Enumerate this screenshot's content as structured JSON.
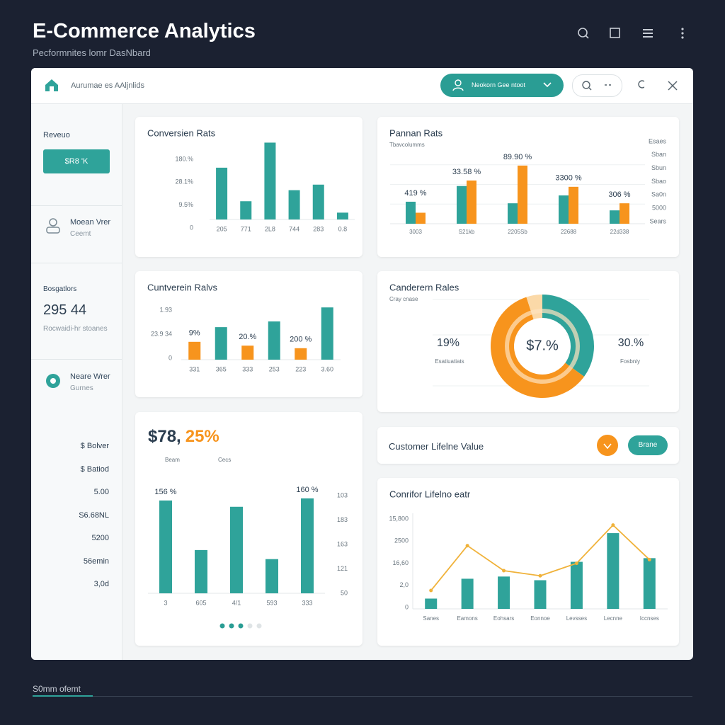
{
  "header": {
    "title": "E-Commerce Analytics",
    "subtitle": "Pecformnites lomr DasNbard"
  },
  "toolbar": {
    "breadcrumb": "Aurumae es AAljnlids",
    "dropdown": "Neokorn Gee ntoot"
  },
  "sidebar": {
    "revenue_label": "Reveuo",
    "revenue_button": "$R8 'K",
    "user1": [
      "Moean Vrer",
      "Ceemt"
    ],
    "stat_label": "Bosgatlors",
    "stat_value": "295 44",
    "stat_caption": "Rocwaidi-hr stoanes",
    "user2": [
      "Neare Wrer",
      "Gurnes"
    ],
    "list": [
      "$ Bolver",
      "$ Batiod",
      "5.00",
      "S6.68NL",
      "5200",
      "56emin",
      "3,0d"
    ]
  },
  "lifetime_row": {
    "title": "Customer Lifelne Value",
    "button": "Brane"
  },
  "footer": {
    "label": "S0mm ofemt"
  },
  "chart_data": [
    {
      "type": "bar",
      "title": "Conversien Rats",
      "categories": [
        "205",
        "771",
        "2L8",
        "744",
        "283",
        "0.8"
      ],
      "values": [
        159,
        56,
        236,
        90,
        107,
        21
      ],
      "color": "#2fa39a",
      "ylim": [
        0,
        250
      ],
      "y_labels": [
        "180.%",
        "28.1%",
        "9.5%",
        "0"
      ]
    },
    {
      "type": "grouped-bar",
      "title": "Pannan Rats",
      "subtitle": "Tbavcolumms",
      "categories": [
        "3003",
        "S21kb",
        "2205Sb",
        "22688",
        "22d338"
      ],
      "series": [
        {
          "color": "#2fa39a",
          "values": [
            28,
            48,
            26,
            36,
            17
          ]
        },
        {
          "color": "#f7941d",
          "values": [
            14,
            55,
            74,
            47,
            26
          ]
        }
      ],
      "annotations": [
        "419 %",
        "33.58 %",
        "89.90 %",
        "3300 %",
        "306 %"
      ],
      "y2_labels": [
        "Esaes",
        "Sban",
        "Sbun",
        "Sbao",
        "Sa0n",
        "5000",
        "Sears"
      ],
      "ylim": [
        0,
        100
      ]
    },
    {
      "type": "bar",
      "title": "Cuntverein Ralvs",
      "categories": [
        "331",
        "365",
        "333",
        "253",
        "223",
        "3.60"
      ],
      "values": [
        28,
        51,
        22,
        60,
        18,
        82
      ],
      "colors": [
        "#f7941d",
        "#2fa39a",
        "#f7941d",
        "#2fa39a",
        "#f7941d",
        "#2fa39a"
      ],
      "ylim": [
        0,
        100
      ],
      "y_labels": [
        "1.93",
        "23.9 34",
        "0"
      ],
      "annotations": [
        "9%",
        "20.%",
        "200 %"
      ]
    },
    {
      "type": "donut",
      "title": "Canderern Rales",
      "subtitle": "Cray cnase",
      "values": [
        35,
        60,
        5
      ],
      "colors": [
        "#2fa39a",
        "#f7941d",
        "#fbd9a8"
      ],
      "center_label": "$7.%",
      "left_value": "19%",
      "left_caption": "Esatiuatiats",
      "right_value": "30.%",
      "right_caption": "Fosbniy"
    },
    {
      "type": "bar",
      "headline": "$78,",
      "headline_accent": "25%",
      "captions": [
        "Beam",
        "Cecs"
      ],
      "annotations": [
        "156 %",
        "160 %"
      ],
      "categories": [
        "3",
        "605",
        "4/1",
        "593",
        "333"
      ],
      "values": [
        133,
        62,
        124,
        49,
        136
      ],
      "color": "#2fa39a",
      "ylim": [
        0,
        140
      ],
      "y2_labels": [
        "103",
        "183",
        "163",
        "121",
        "50"
      ]
    },
    {
      "type": "combo",
      "title": "Conrifor Lifelno eatr",
      "y_labels": [
        "15,800",
        "2500",
        "16,60",
        "2,0",
        "0"
      ],
      "categories": [
        "Sanes",
        "Eamons",
        "Eohsars",
        "Eonnoe",
        "Levsses",
        "Lecnne",
        "Iccnses"
      ],
      "series": [
        {
          "type": "bar",
          "color": "#2fa39a",
          "values": [
            14,
            41,
            44,
            39,
            64,
            103,
            69
          ]
        },
        {
          "type": "line",
          "color": "#f0b23a",
          "values": [
            25,
            86,
            52,
            45,
            62,
            114,
            67
          ]
        }
      ],
      "ylim": [
        0,
        130
      ]
    }
  ]
}
